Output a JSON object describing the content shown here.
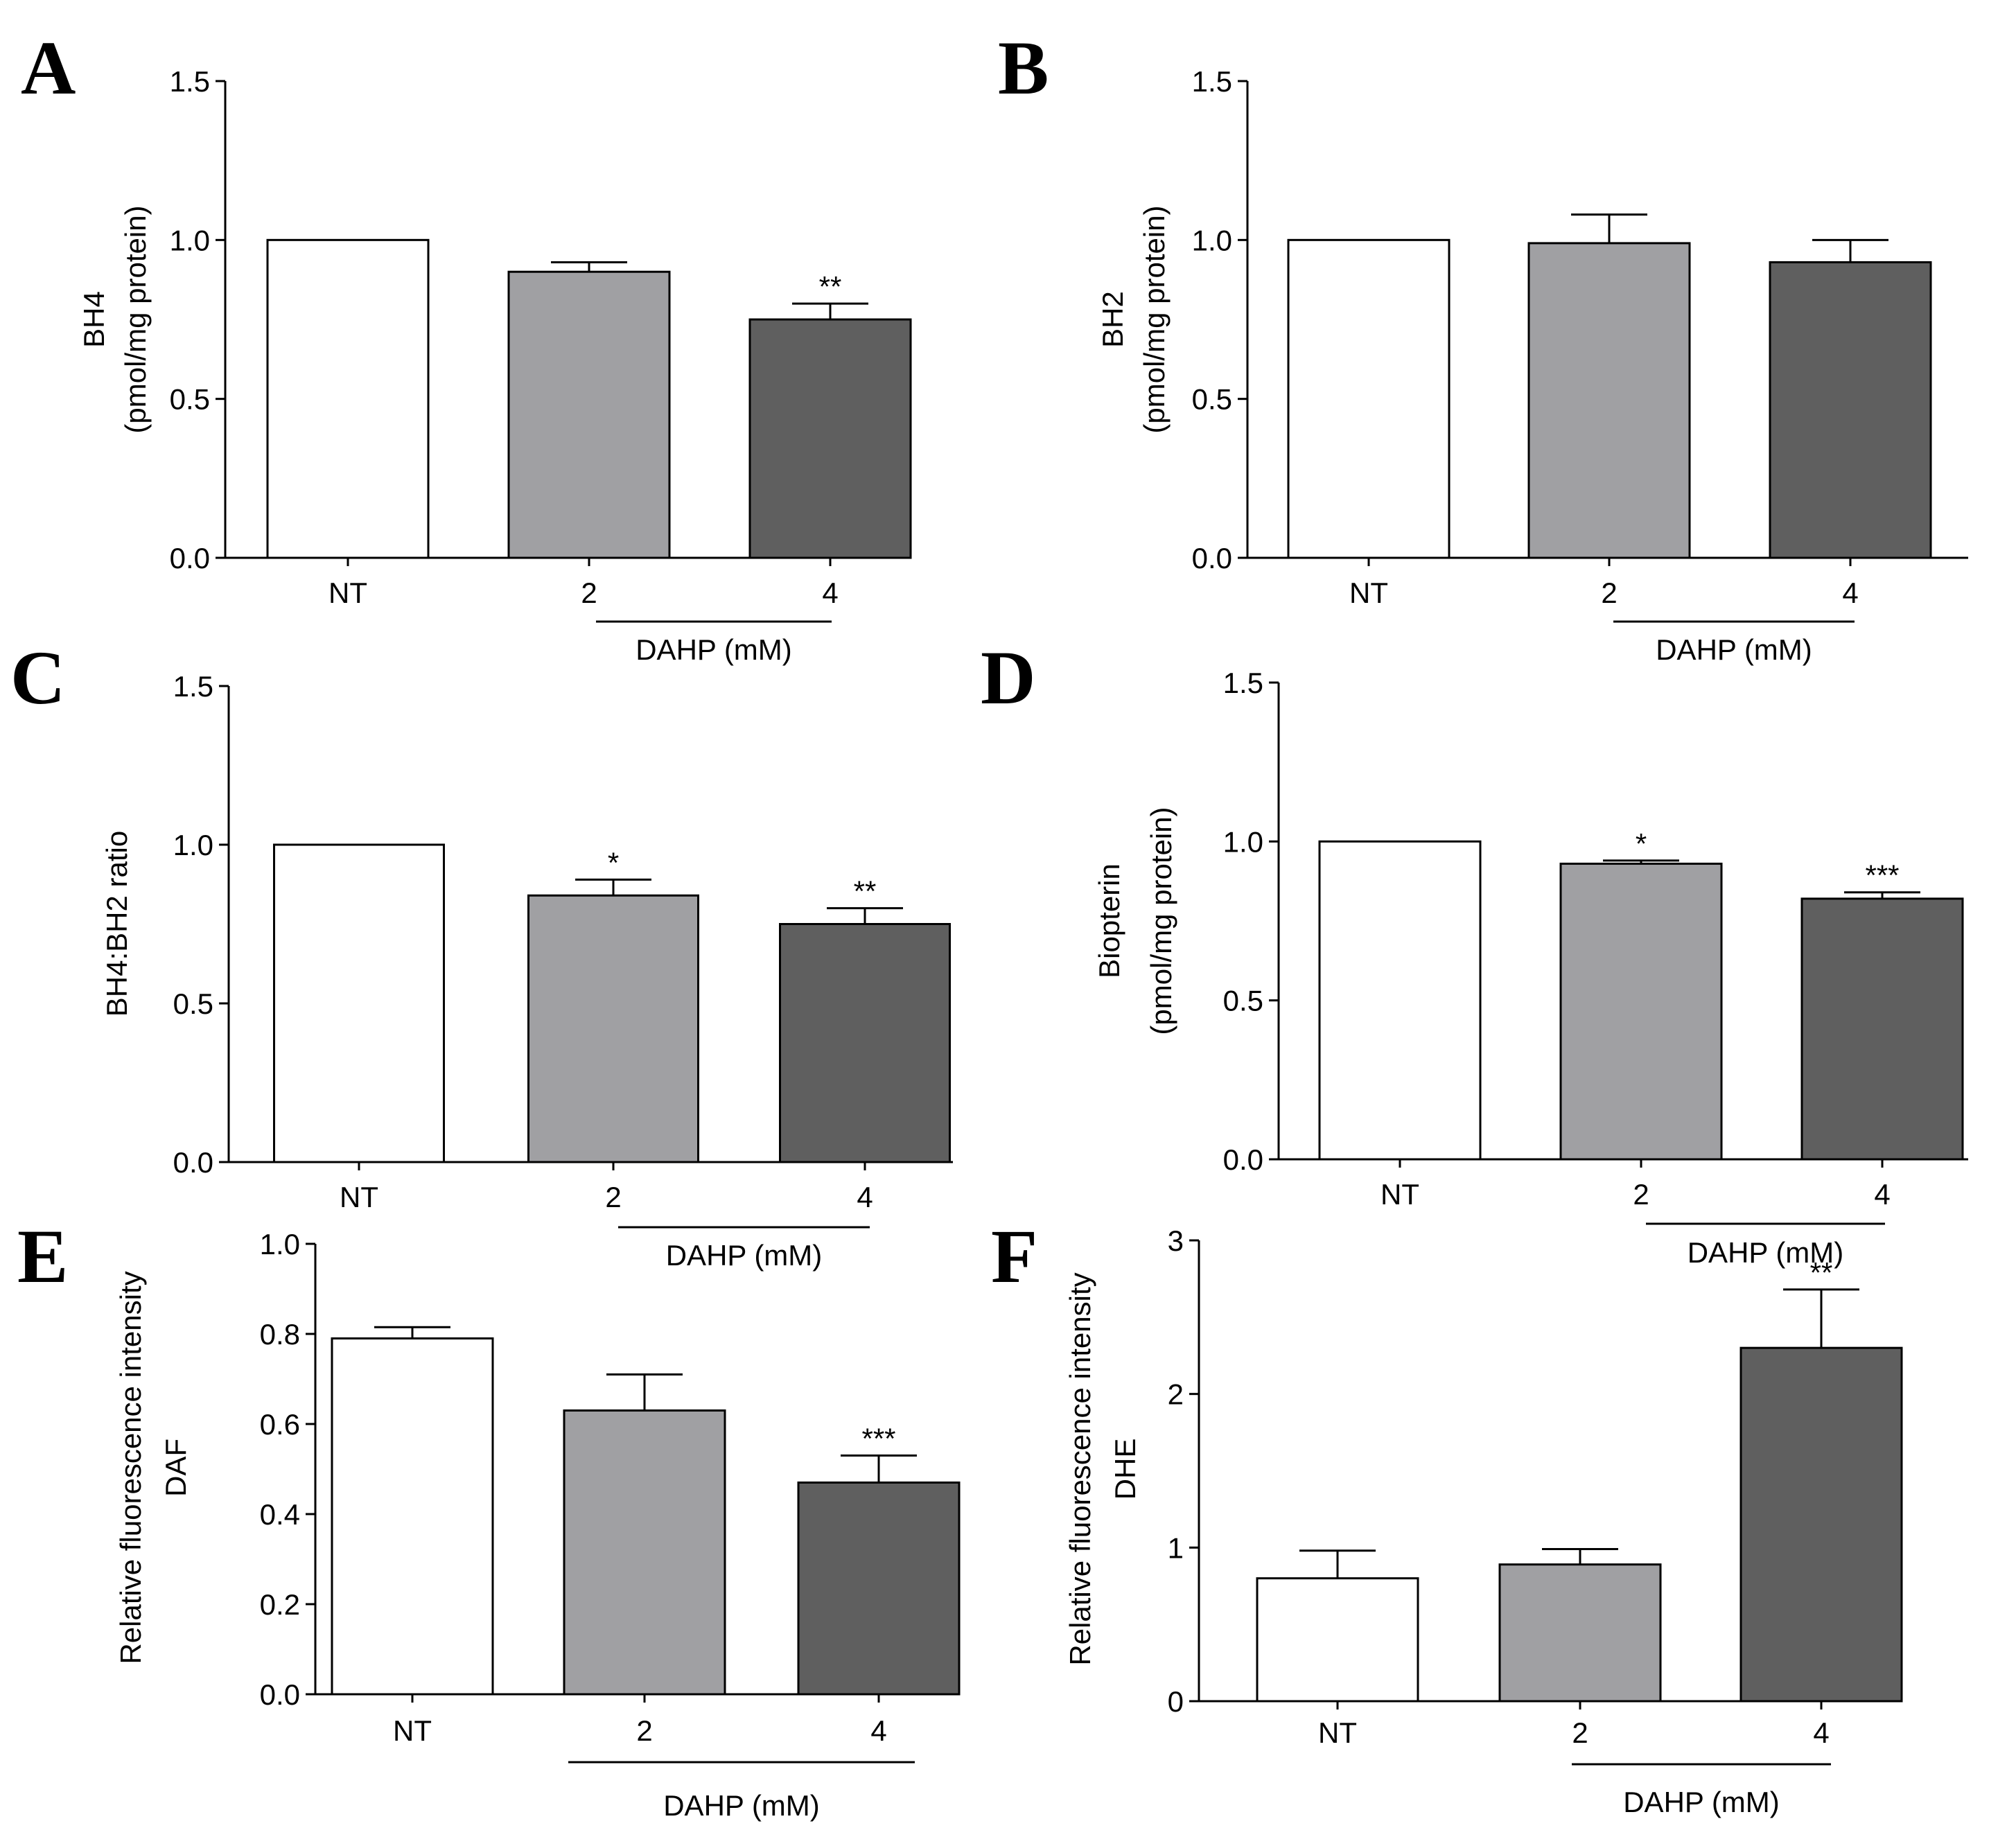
{
  "chart_data": [
    {
      "type": "bar",
      "panel": "A",
      "categories": [
        "NT",
        "2",
        "4"
      ],
      "values": [
        1.0,
        0.9,
        0.75
      ],
      "errors": [
        0,
        0.03,
        0.05
      ],
      "significance": [
        "",
        "",
        "**"
      ],
      "ylabel": [
        "BH4",
        "(pmol/mg protein)"
      ],
      "ylim": [
        0,
        1.5
      ],
      "yticks": [
        "0.0",
        "0.5",
        "1.0",
        "1.5"
      ],
      "ytick_values": [
        0,
        0.5,
        1.0,
        1.5
      ],
      "group_label": "DAHP (mM)",
      "bar_colors": [
        "#ffffff",
        "#a0a0a3",
        "#5f5f5f"
      ]
    },
    {
      "type": "bar",
      "panel": "B",
      "categories": [
        "NT",
        "2",
        "4"
      ],
      "values": [
        1.0,
        0.99,
        0.93
      ],
      "errors": [
        0,
        0.09,
        0.07
      ],
      "significance": [
        "",
        "",
        ""
      ],
      "ylabel": [
        "BH2",
        "(pmol/mg protein)"
      ],
      "ylim": [
        0,
        1.5
      ],
      "yticks": [
        "0.0",
        "0.5",
        "1.0",
        "1.5"
      ],
      "ytick_values": [
        0,
        0.5,
        1.0,
        1.5
      ],
      "group_label": "DAHP (mM)",
      "bar_colors": [
        "#ffffff",
        "#a0a0a3",
        "#5f5f5f"
      ]
    },
    {
      "type": "bar",
      "panel": "C",
      "categories": [
        "NT",
        "2",
        "4"
      ],
      "values": [
        1.0,
        0.84,
        0.75
      ],
      "errors": [
        0,
        0.05,
        0.05
      ],
      "significance": [
        "",
        "*",
        "**"
      ],
      "ylabel": [
        "BH4:BH2 ratio"
      ],
      "ylim": [
        0,
        1.5
      ],
      "yticks": [
        "0.0",
        "0.5",
        "1.0",
        "1.5"
      ],
      "ytick_values": [
        0,
        0.5,
        1.0,
        1.5
      ],
      "group_label": "DAHP (mM)",
      "bar_colors": [
        "#ffffff",
        "#a0a0a3",
        "#5f5f5f"
      ]
    },
    {
      "type": "bar",
      "panel": "D",
      "categories": [
        "NT",
        "2",
        "4"
      ],
      "values": [
        1.0,
        0.93,
        0.82
      ],
      "errors": [
        0,
        0.01,
        0.02
      ],
      "significance": [
        "",
        "*",
        "***"
      ],
      "ylabel": [
        "Biopterin",
        "(pmol/mg protein)"
      ],
      "ylim": [
        0,
        1.5
      ],
      "yticks": [
        "0.0",
        "0.5",
        "1.0",
        "1.5"
      ],
      "ytick_values": [
        0,
        0.5,
        1.0,
        1.5
      ],
      "group_label": "DAHP (mM)",
      "bar_colors": [
        "#ffffff",
        "#a0a0a3",
        "#5f5f5f"
      ]
    },
    {
      "type": "bar",
      "panel": "E",
      "categories": [
        "NT",
        "2",
        "4"
      ],
      "values": [
        0.79,
        0.63,
        0.47
      ],
      "errors": [
        0.025,
        0.08,
        0.06
      ],
      "significance": [
        "",
        "",
        "***"
      ],
      "ylabel": [
        "Relative fluorescence intensity",
        "DAF"
      ],
      "ylim": [
        0,
        1.0
      ],
      "yticks": [
        "0.0",
        "0.2",
        "0.4",
        "0.6",
        "0.8",
        "1.0"
      ],
      "ytick_values": [
        0,
        0.2,
        0.4,
        0.6,
        0.8,
        1.0
      ],
      "group_label": "DAHP (mM)",
      "bar_colors": [
        "#ffffff",
        "#a0a0a3",
        "#5f5f5f"
      ]
    },
    {
      "type": "bar",
      "panel": "F",
      "categories": [
        "NT",
        "2",
        "4"
      ],
      "values": [
        0.8,
        0.89,
        2.3
      ],
      "errors": [
        0.18,
        0.1,
        0.38
      ],
      "significance": [
        "",
        "",
        "**"
      ],
      "ylabel": [
        "Relative fluorescence intensity",
        "DHE"
      ],
      "ylim": [
        0,
        3
      ],
      "yticks": [
        "0",
        "1",
        "2",
        "3"
      ],
      "ytick_values": [
        0,
        1,
        2,
        3
      ],
      "group_label": "DAHP (mM)",
      "bar_colors": [
        "#ffffff",
        "#a0a0a3",
        "#5f5f5f"
      ]
    }
  ]
}
